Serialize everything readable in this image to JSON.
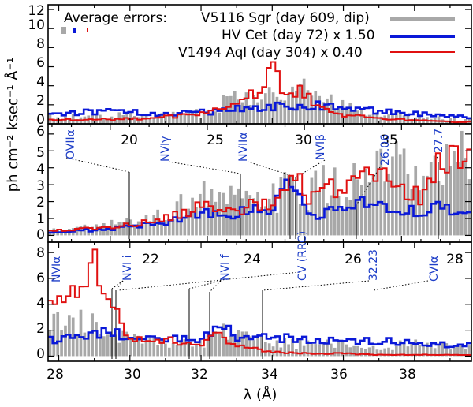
{
  "chart_data": {
    "type": "line",
    "ylabel": "ph cm⁻² ksec⁻¹ Å⁻¹",
    "xlabel": "λ (Å)",
    "legend": {
      "heading": "Average errors:",
      "placement": "top-right",
      "entries": [
        {
          "name": "V5116 Sgr (day 609, dip)",
          "color": "#a8a8a8",
          "style": "filled-histogram"
        },
        {
          "name": "HV Cet (day 72) x 1.50",
          "color": "#0a18d8",
          "style": "step"
        },
        {
          "name": "V1494 Aql (day 304) x 0.40",
          "color": "#e01010",
          "style": "step"
        }
      ]
    },
    "panels": [
      {
        "id": "top",
        "x_range": [
          27.7,
          39.6
        ],
        "ylim": [
          0,
          12.5
        ],
        "yticks": [
          0,
          2,
          4,
          6,
          8,
          10,
          12
        ],
        "series": [
          {
            "name": "V5116 Sgr (day 609, dip)",
            "x": [
              28,
              29,
              30,
              31,
              32,
              32.8,
              33.2,
              33.6,
              34,
              34.4,
              34.8,
              35.2,
              35.6,
              36,
              36.5,
              37,
              37.5,
              38,
              38.5,
              39,
              39.5
            ],
            "y": [
              0.7,
              0.8,
              0.9,
              0.9,
              1.1,
              2.7,
              2.6,
              3.7,
              4.6,
              3.2,
              3.6,
              3.1,
              2.5,
              2.1,
              1.6,
              1.2,
              1.0,
              0.9,
              0.6,
              0.5,
              0.4
            ]
          },
          {
            "name": "HV Cet (day 72) x 1.50",
            "x": [
              28,
              29,
              30,
              31,
              32,
              32.8,
              33.2,
              33.6,
              34,
              34.4,
              34.8,
              35.2,
              35.6,
              36,
              36.5,
              37,
              37.5,
              38,
              38.5,
              39,
              39.5
            ],
            "y": [
              1.1,
              1.3,
              1.2,
              1.0,
              1.2,
              1.5,
              1.6,
              1.7,
              1.7,
              1.9,
              2.0,
              1.9,
              1.9,
              1.7,
              1.5,
              1.3,
              1.2,
              1.1,
              0.9,
              0.8,
              0.7
            ]
          },
          {
            "name": "V1494 Aql (day 304) x 0.40",
            "x": [
              28,
              29,
              30,
              31,
              32,
              32.8,
              33.2,
              33.6,
              34,
              34.4,
              34.8,
              35.2,
              35.6,
              36,
              36.5,
              37,
              37.5,
              38,
              38.5,
              39,
              39.5
            ],
            "y": [
              0.4,
              0.5,
              0.5,
              0.7,
              1.2,
              2.1,
              2.7,
              3.1,
              5.7,
              3.1,
              3.9,
              2.3,
              1.4,
              1.0,
              0.8,
              0.6,
              0.5,
              0.4,
              0.3,
              0.2,
              0.2
            ]
          }
        ]
      },
      {
        "id": "middle",
        "x_range": [
          16.8,
          38.6
        ],
        "xticks": [
          20,
          25,
          30,
          35
        ],
        "ylim": [
          -0.4,
          6.6
        ],
        "yticks": [
          0,
          1,
          2,
          3,
          4,
          5,
          6
        ],
        "series": [
          {
            "name": "V5116 Sgr (day 609, dip)",
            "x": [
              17,
              19,
              21,
              23,
              24.8,
              26,
              27,
              28.4,
              29.5,
              30.2,
              31,
              32,
              33,
              34,
              35,
              36,
              37,
              38
            ],
            "y": [
              0.3,
              0.5,
              0.8,
              1.3,
              2.5,
              2.2,
              1.9,
              2.2,
              3.0,
              2.6,
              2.9,
              2.8,
              3.3,
              4.0,
              3.8,
              2.7,
              3.8,
              4.5
            ]
          },
          {
            "name": "HV Cet (day 72) x 1.50",
            "x": [
              17,
              19,
              21,
              23,
              24.8,
              26,
              27,
              28.4,
              29.5,
              30.2,
              31,
              32,
              33,
              34,
              35,
              36,
              37,
              38
            ],
            "y": [
              0.2,
              0.3,
              0.5,
              0.8,
              1.3,
              1.2,
              1.4,
              1.5,
              3.6,
              1.4,
              1.2,
              1.6,
              2.0,
              1.9,
              1.6,
              1.4,
              1.8,
              1.2
            ]
          },
          {
            "name": "V1494 Aql (day 304) x 0.40",
            "x": [
              17,
              19,
              21,
              23,
              24.8,
              26,
              27,
              28.4,
              29.5,
              30.2,
              31,
              32,
              33,
              34,
              35,
              36,
              37,
              38
            ],
            "y": [
              0.3,
              0.4,
              0.6,
              1.0,
              1.8,
              1.4,
              1.7,
              1.8,
              3.5,
              2.0,
              2.5,
              3.1,
              3.3,
              3.4,
              2.8,
              2.2,
              4.3,
              5.3
            ]
          }
        ],
        "line_labels": [
          {
            "label": "OVIIα",
            "at": 18.3
          },
          {
            "label": "NVIγ",
            "at": 22.6
          },
          {
            "label": "NVIIα",
            "at": 24.8
          },
          {
            "label": "NVIβ",
            "at": 29.3
          },
          {
            "label": "26.06",
            "at": 33.1
          },
          {
            "label": "27.7",
            "at": 36.7
          }
        ]
      },
      {
        "id": "bottom",
        "x_range": [
          27.7,
          39.6
        ],
        "xticks": [
          28,
          30,
          32,
          34,
          36,
          38
        ],
        "secondary_x_range": [
          20.3,
          28.35
        ],
        "secondary_xticks": [
          22,
          24,
          26,
          28
        ],
        "ylim": [
          -0.4,
          8.8
        ],
        "yticks": [
          0,
          2,
          4,
          6,
          8
        ],
        "series": [
          {
            "name": "V5116 Sgr (day 609, dip)",
            "x": [
              28,
              28.5,
              29,
              29.5,
              30,
              31,
              32,
              32.5,
              33,
              33.6,
              34,
              35,
              36,
              37,
              38,
              39
            ],
            "y": [
              3.2,
              2.8,
              2.4,
              1.8,
              1.6,
              1.2,
              1.0,
              2.0,
              1.4,
              1.2,
              1.1,
              0.9,
              0.9,
              0.8,
              0.9,
              0.7
            ]
          },
          {
            "name": "HV Cet (day 72) x 1.50",
            "x": [
              28,
              28.5,
              29,
              29.5,
              30,
              31,
              32,
              32.5,
              33,
              33.6,
              34,
              35,
              36,
              37,
              38,
              39
            ],
            "y": [
              1.3,
              1.4,
              1.8,
              2.0,
              1.4,
              1.3,
              1.2,
              2.6,
              1.4,
              1.3,
              1.5,
              1.2,
              1.1,
              1.2,
              1.0,
              0.9
            ]
          },
          {
            "name": "V1494 Aql (day 304) x 0.40",
            "x": [
              28,
              28.5,
              29,
              29.5,
              30,
              31,
              32,
              32.5,
              33,
              33.6,
              34,
              35,
              36,
              37,
              38,
              39
            ],
            "y": [
              5.3,
              4.2,
              6.8,
              3.5,
              1.5,
              1.3,
              0.8,
              1.7,
              0.9,
              0.6,
              0.3,
              0.2,
              0.2,
              0.1,
              0.1,
              0.1
            ]
          }
        ],
        "line_labels": [
          {
            "label": "NVIα",
            "at": 28.6
          },
          {
            "label": "NVI i",
            "at": 29.9
          },
          {
            "label": "NVI f",
            "at": 32.2
          },
          {
            "label": "CV (RRC)",
            "at": 34.5
          },
          {
            "label": "32.23",
            "at": 36.5
          },
          {
            "label": "CVIα",
            "at": 38.2
          }
        ]
      }
    ]
  }
}
